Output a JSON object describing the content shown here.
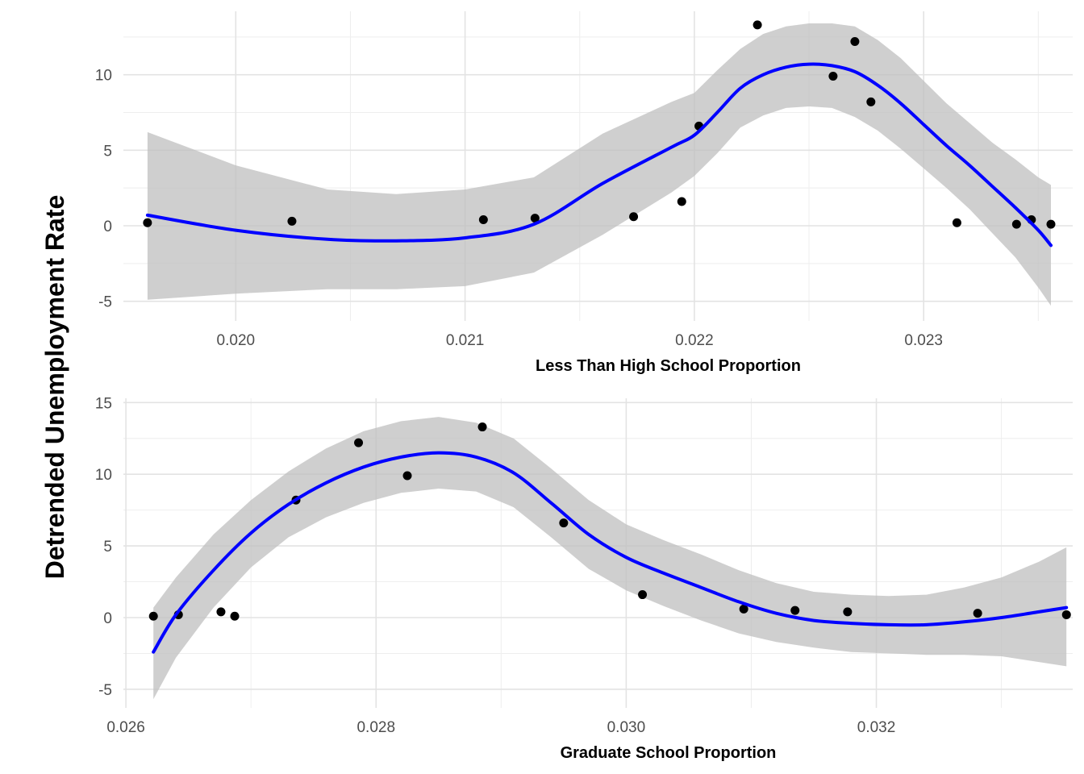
{
  "y_title": "Detrended Unemployment Rate",
  "colors": {
    "points": "#000000",
    "smooth": "#0000ff",
    "band": "#bfbfbf",
    "grid": "#e3e3e3"
  },
  "chart_data": [
    {
      "type": "scatter",
      "xlabel": "Less Than High School Proportion",
      "ylabel": "Detrended Unemployment Rate",
      "grid": true,
      "xlim": [
        0.01951,
        0.02365
      ],
      "ylim": [
        -6.3,
        14.2
      ],
      "x_ticks": [
        0.02,
        0.021,
        0.022,
        0.023
      ],
      "x_tick_labels": [
        "0.020",
        "0.021",
        "0.022",
        "0.023"
      ],
      "y_ticks": [
        -5,
        0,
        5,
        10
      ],
      "y_tick_labels": [
        "-5",
        "0",
        "5",
        "10"
      ],
      "points": [
        {
          "x": 0.019615,
          "y": 0.2
        },
        {
          "x": 0.020245,
          "y": 0.3
        },
        {
          "x": 0.02108,
          "y": 0.4
        },
        {
          "x": 0.021305,
          "y": 0.5
        },
        {
          "x": 0.021735,
          "y": 0.6
        },
        {
          "x": 0.021945,
          "y": 1.6
        },
        {
          "x": 0.02202,
          "y": 6.6
        },
        {
          "x": 0.022275,
          "y": 13.3
        },
        {
          "x": 0.022605,
          "y": 9.9
        },
        {
          "x": 0.0227,
          "y": 12.2
        },
        {
          "x": 0.02277,
          "y": 8.2
        },
        {
          "x": 0.023145,
          "y": 0.2
        },
        {
          "x": 0.023405,
          "y": 0.1
        },
        {
          "x": 0.02347,
          "y": 0.4
        },
        {
          "x": 0.023555,
          "y": 0.1
        }
      ],
      "smooth": {
        "x": [
          0.019615,
          0.02,
          0.0204,
          0.0207,
          0.021,
          0.0213,
          0.0216,
          0.0219,
          0.022,
          0.0221,
          0.0222,
          0.0223,
          0.0224,
          0.0225,
          0.0226,
          0.0227,
          0.0228,
          0.0229,
          0.023,
          0.0231,
          0.0232,
          0.0233,
          0.0234,
          0.0235,
          0.023555
        ],
        "fit": [
          0.7,
          -0.3,
          -0.9,
          -1.0,
          -0.8,
          0.1,
          2.8,
          5.2,
          6.0,
          7.5,
          9.1,
          10.0,
          10.5,
          10.7,
          10.6,
          10.2,
          9.3,
          8.1,
          6.7,
          5.3,
          4.0,
          2.6,
          1.2,
          -0.3,
          -1.3
        ],
        "lower": [
          -4.9,
          -4.5,
          -4.2,
          -4.2,
          -4.0,
          -3.1,
          -0.6,
          2.2,
          3.3,
          4.8,
          6.5,
          7.3,
          7.8,
          7.9,
          7.8,
          7.2,
          6.3,
          5.1,
          3.8,
          2.5,
          1.1,
          -0.5,
          -2.1,
          -4.1,
          -5.3
        ],
        "upper": [
          6.2,
          4.0,
          2.4,
          2.1,
          2.4,
          3.2,
          6.1,
          8.2,
          8.8,
          10.3,
          11.7,
          12.7,
          13.2,
          13.4,
          13.4,
          13.2,
          12.3,
          11.1,
          9.6,
          8.1,
          6.8,
          5.5,
          4.4,
          3.2,
          2.7
        ]
      }
    },
    {
      "type": "scatter",
      "xlabel": "Graduate School Proportion",
      "ylabel": "Detrended Unemployment Rate",
      "grid": true,
      "xlim": [
        0.02598,
        0.03357
      ],
      "ylim": [
        -6.3,
        15.3
      ],
      "x_ticks": [
        0.026,
        0.028,
        0.03,
        0.032
      ],
      "x_tick_labels": [
        "0.026",
        "0.028",
        "0.030",
        "0.032"
      ],
      "y_ticks": [
        -5,
        0,
        5,
        10,
        15
      ],
      "y_tick_labels": [
        "-5",
        "0",
        "5",
        "10",
        "15"
      ],
      "points": [
        {
          "x": 0.02622,
          "y": 0.1
        },
        {
          "x": 0.02642,
          "y": 0.2
        },
        {
          "x": 0.02676,
          "y": 0.4
        },
        {
          "x": 0.02687,
          "y": 0.1
        },
        {
          "x": 0.02736,
          "y": 8.2
        },
        {
          "x": 0.02786,
          "y": 12.2
        },
        {
          "x": 0.02825,
          "y": 9.9
        },
        {
          "x": 0.02885,
          "y": 13.3
        },
        {
          "x": 0.0295,
          "y": 6.6
        },
        {
          "x": 0.03013,
          "y": 1.6
        },
        {
          "x": 0.03094,
          "y": 0.6
        },
        {
          "x": 0.03135,
          "y": 0.5
        },
        {
          "x": 0.03177,
          "y": 0.4
        },
        {
          "x": 0.03281,
          "y": 0.3
        },
        {
          "x": 0.03352,
          "y": 0.2
        }
      ],
      "smooth": {
        "x": [
          0.02622,
          0.0264,
          0.0267,
          0.027,
          0.0273,
          0.0276,
          0.0279,
          0.0282,
          0.0285,
          0.0288,
          0.0291,
          0.0294,
          0.0297,
          0.03,
          0.0303,
          0.0306,
          0.0309,
          0.0312,
          0.0315,
          0.0318,
          0.0321,
          0.0324,
          0.0327,
          0.033,
          0.0333,
          0.03352
        ],
        "fit": [
          -2.4,
          0.2,
          3.3,
          5.9,
          7.9,
          9.4,
          10.5,
          11.2,
          11.5,
          11.2,
          10.1,
          8.0,
          5.8,
          4.2,
          3.1,
          2.1,
          1.1,
          0.3,
          -0.2,
          -0.4,
          -0.5,
          -0.5,
          -0.3,
          0.0,
          0.4,
          0.7
        ],
        "lower": [
          -5.7,
          -2.8,
          0.7,
          3.5,
          5.6,
          7.0,
          8.0,
          8.7,
          9.0,
          8.8,
          7.7,
          5.6,
          3.4,
          1.9,
          0.8,
          -0.2,
          -1.1,
          -1.7,
          -2.1,
          -2.4,
          -2.5,
          -2.6,
          -2.6,
          -2.7,
          -3.1,
          -3.4
        ],
        "upper": [
          0.7,
          2.8,
          5.8,
          8.2,
          10.2,
          11.8,
          13.0,
          13.7,
          14.0,
          13.6,
          12.5,
          10.4,
          8.2,
          6.5,
          5.4,
          4.4,
          3.3,
          2.4,
          1.8,
          1.6,
          1.5,
          1.6,
          2.1,
          2.8,
          3.9,
          4.9
        ]
      }
    }
  ]
}
